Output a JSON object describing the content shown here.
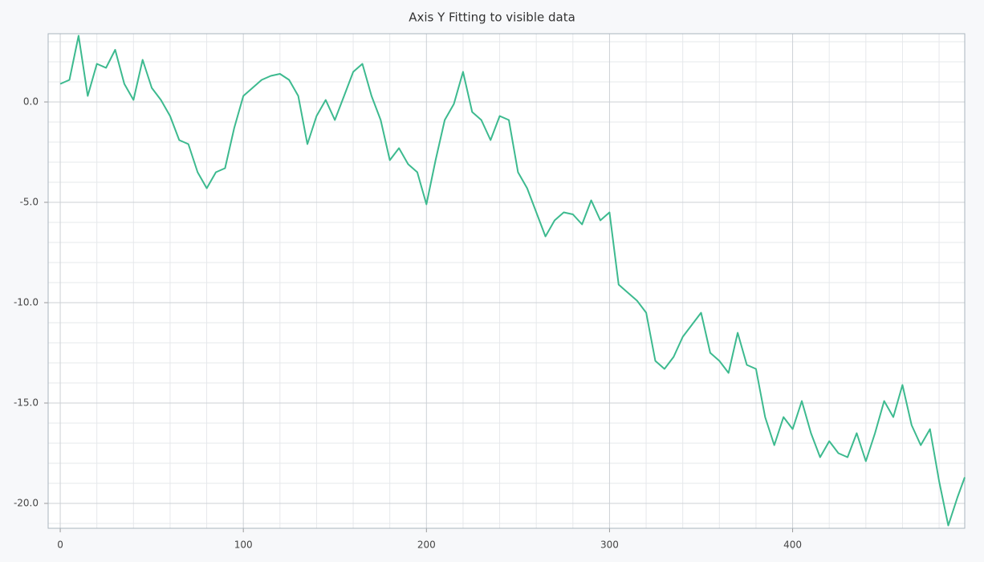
{
  "chart_data": {
    "type": "line",
    "title": "Axis Y Fitting to visible data",
    "x": [
      0,
      5,
      10,
      15,
      20,
      25,
      30,
      35,
      40,
      45,
      50,
      55,
      60,
      65,
      70,
      75,
      80,
      85,
      90,
      95,
      100,
      105,
      110,
      115,
      120,
      125,
      130,
      135,
      140,
      145,
      150,
      155,
      160,
      165,
      170,
      175,
      180,
      185,
      190,
      195,
      200,
      205,
      210,
      215,
      220,
      225,
      230,
      235,
      240,
      245,
      250,
      255,
      260,
      265,
      270,
      275,
      280,
      285,
      290,
      295,
      300,
      305,
      310,
      315,
      320,
      325,
      330,
      335,
      340,
      345,
      350,
      355,
      360,
      365,
      370,
      375,
      380,
      385,
      390,
      395,
      400,
      405,
      410,
      415,
      420,
      425,
      430,
      435,
      440,
      445,
      450,
      455,
      460,
      465,
      470,
      475,
      480,
      485,
      490,
      494
    ],
    "series": [
      {
        "color": "#3dba8f",
        "values": [
          0.9,
          1.1,
          3.3,
          0.3,
          1.9,
          1.7,
          2.6,
          0.9,
          0.1,
          2.1,
          0.7,
          0.1,
          -0.7,
          -1.9,
          -2.1,
          -3.5,
          -4.3,
          -3.5,
          -3.3,
          -1.3,
          0.3,
          0.7,
          1.1,
          1.3,
          1.4,
          1.1,
          0.3,
          -2.1,
          -0.7,
          0.1,
          -0.9,
          0.3,
          1.5,
          1.9,
          0.3,
          -0.9,
          -2.9,
          -2.3,
          -3.1,
          -3.5,
          -5.1,
          -2.9,
          -0.9,
          -0.1,
          1.5,
          -0.5,
          -0.9,
          -1.9,
          -0.7,
          -0.9,
          -3.5,
          -4.3,
          -5.5,
          -6.7,
          -5.9,
          -5.5,
          -5.6,
          -6.1,
          -4.9,
          -5.9,
          -5.5,
          -9.1,
          -9.5,
          -9.9,
          -10.5,
          -12.9,
          -13.3,
          -12.7,
          -11.7,
          -11.1,
          -10.5,
          -12.5,
          -12.9,
          -13.5,
          -11.5,
          -13.1,
          -13.3,
          -15.7,
          -17.1,
          -15.7,
          -16.3,
          -14.9,
          -16.5,
          -17.7,
          -16.9,
          -17.5,
          -17.7,
          -16.5,
          -17.9,
          -16.5,
          -14.9,
          -15.7,
          -14.1,
          -16.1,
          -17.1,
          -16.3,
          -18.9,
          -21.1,
          -19.7,
          -18.7
        ]
      }
    ],
    "xlim": [
      -6.6,
      494
    ],
    "ylim": [
      -21.24,
      3.4
    ],
    "xticks": [
      0,
      100,
      200,
      300,
      400
    ],
    "yticks": [
      {
        "value": 0,
        "label": "0.0"
      },
      {
        "value": -5,
        "label": "-5.0"
      },
      {
        "value": -10,
        "label": "-10.0"
      },
      {
        "value": -15,
        "label": "-15.0"
      },
      {
        "value": -20,
        "label": "-20.0"
      }
    ],
    "xminorticks": [
      20,
      40,
      60,
      80,
      120,
      140,
      160,
      180,
      220,
      240,
      260,
      280,
      320,
      340,
      360,
      380,
      420,
      440,
      460,
      480
    ],
    "yminorticks": [
      3,
      2,
      1,
      -1,
      -2,
      -3,
      -4,
      -6,
      -7,
      -8,
      -9,
      -11,
      -12,
      -13,
      -14,
      -16,
      -17,
      -18,
      -19,
      -21
    ],
    "grid": true
  }
}
